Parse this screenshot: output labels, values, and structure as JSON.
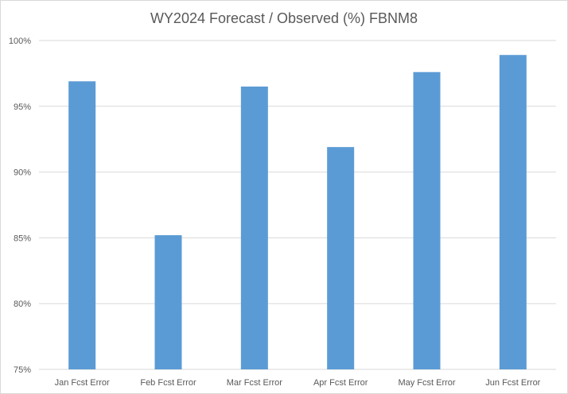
{
  "chart_data": {
    "type": "bar",
    "title": "WY2024 Forecast / Observed (%) FBNM8",
    "xlabel": "",
    "ylabel": "",
    "categories": [
      "Jan Fcst Error",
      "Feb Fcst Error",
      "Mar Fcst Error",
      "Apr Fcst Error",
      "May Fcst Error",
      "Jun Fcst Error"
    ],
    "values": [
      96.9,
      85.2,
      96.5,
      91.9,
      97.6,
      98.9
    ],
    "ylim": [
      75,
      100
    ],
    "yticks": [
      75,
      80,
      85,
      90,
      95,
      100
    ],
    "ytick_labels": [
      "75%",
      "80%",
      "85%",
      "90%",
      "95%",
      "100%"
    ],
    "grid": true,
    "legend": "none",
    "bar_color": "#5b9bd5",
    "gridline_color": "#d9d9d9"
  }
}
